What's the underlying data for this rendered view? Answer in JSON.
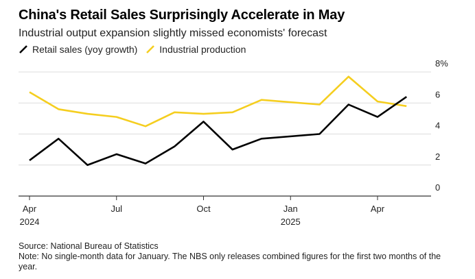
{
  "title": "China's Retail Sales Surprisingly Accelerate in May",
  "subtitle": "Industrial output expansion slightly missed economists' forecast",
  "legend": [
    {
      "label": "Retail sales (yoy growth)",
      "color": "#000000"
    },
    {
      "label": "Industrial production",
      "color": "#f5ce1f"
    }
  ],
  "footer": {
    "source": "Source: National Bureau of Statistics",
    "note": "Note: No single-month data for January. The NBS only releases combined figures for the first two months of the year."
  },
  "chart_data": {
    "type": "line",
    "x": [
      "2024-04",
      "2024-05",
      "2024-06",
      "2024-07",
      "2024-08",
      "2024-09",
      "2024-10",
      "2024-11",
      "2024-12",
      "2025-02",
      "2025-03",
      "2025-04",
      "2025-05"
    ],
    "series": [
      {
        "name": "Retail sales (yoy growth)",
        "color": "#000000",
        "values": [
          2.3,
          3.7,
          2.0,
          2.7,
          2.1,
          3.2,
          4.8,
          3.0,
          3.7,
          4.0,
          5.9,
          5.1,
          6.4
        ]
      },
      {
        "name": "Industrial production",
        "color": "#f5ce1f",
        "values": [
          6.7,
          5.6,
          5.3,
          5.1,
          4.5,
          5.4,
          5.3,
          5.4,
          6.2,
          5.9,
          7.7,
          6.1,
          5.8
        ]
      }
    ],
    "x_ticks": [
      {
        "x": "2024-04",
        "label": "Apr",
        "year": "2024"
      },
      {
        "x": "2024-07",
        "label": "Jul",
        "year": ""
      },
      {
        "x": "2024-10",
        "label": "Oct",
        "year": ""
      },
      {
        "x": "2025-01",
        "label": "Jan",
        "year": "2025"
      },
      {
        "x": "2025-04",
        "label": "Apr",
        "year": ""
      }
    ],
    "y_ticks": [
      {
        "value": 0,
        "label": "0"
      },
      {
        "value": 2,
        "label": "2"
      },
      {
        "value": 4,
        "label": "4"
      },
      {
        "value": 6,
        "label": "6"
      },
      {
        "value": 8,
        "label": "8%"
      }
    ],
    "ylim": [
      0,
      8
    ],
    "xlim": [
      "2024-04",
      "2025-05"
    ],
    "grid": true,
    "legend_position": "top-left"
  }
}
